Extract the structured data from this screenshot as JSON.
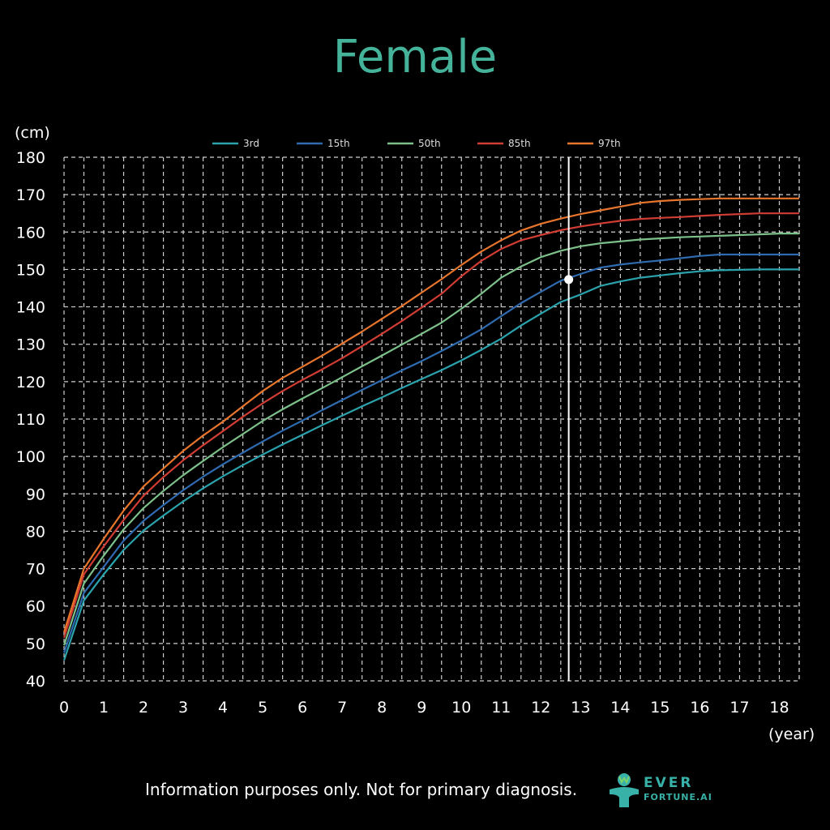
{
  "title": "Female",
  "footer": "Information purposes only. Not for primary diagnosis.",
  "logo": {
    "top": "EVER",
    "bottom": "FORTUNE.AI"
  },
  "chart_data": {
    "type": "line",
    "title": "Female",
    "ylabel": "(cm)",
    "xlabel": "(year)",
    "xlim": [
      0,
      18.5
    ],
    "ylim": [
      40,
      180
    ],
    "xticks": [
      0,
      1,
      2,
      3,
      4,
      5,
      6,
      7,
      8,
      9,
      10,
      11,
      12,
      13,
      14,
      15,
      16,
      17,
      18
    ],
    "yticks": [
      40,
      50,
      60,
      70,
      80,
      90,
      100,
      110,
      120,
      130,
      140,
      150,
      160,
      170,
      180
    ],
    "grid": true,
    "legend_position": "top",
    "x": [
      0,
      0.5,
      1,
      1.5,
      2,
      2.5,
      3,
      3.5,
      4,
      4.5,
      5,
      5.5,
      6,
      6.5,
      7,
      7.5,
      8,
      8.5,
      9,
      9.5,
      10,
      10.5,
      11,
      11.5,
      12,
      12.5,
      13,
      13.5,
      14,
      14.5,
      15,
      15.5,
      16,
      16.5,
      17,
      17.5,
      18,
      18.5
    ],
    "series": [
      {
        "name": "3rd",
        "color": "#2aa3ad",
        "values": [
          45.5,
          61.5,
          68.5,
          75,
          80.2,
          84.2,
          88,
          91.5,
          94.7,
          97.7,
          100.5,
          103.2,
          105.8,
          108.4,
          110.9,
          113.4,
          115.8,
          118.3,
          120.7,
          123.1,
          125.7,
          128.5,
          131.5,
          135,
          138.2,
          141.3,
          143.3,
          145.6,
          146.8,
          147.8,
          148.4,
          149,
          149.5,
          149.8,
          149.9,
          150,
          150,
          150
        ]
      },
      {
        "name": "15th",
        "color": "#2f6bb0",
        "values": [
          47.5,
          63.5,
          70.5,
          77.5,
          82.8,
          87,
          91,
          94.6,
          97.9,
          101,
          104,
          106.9,
          109.6,
          112.4,
          115.1,
          117.8,
          120.4,
          123,
          125.5,
          128.2,
          131,
          134,
          137.5,
          141,
          144,
          147,
          148.8,
          150.5,
          151.3,
          151.9,
          152.4,
          153,
          153.6,
          154,
          154,
          154,
          154,
          154
        ]
      },
      {
        "name": "50th",
        "color": "#7cc08a",
        "values": [
          49.5,
          66,
          73.5,
          80.5,
          86.2,
          90.8,
          95,
          98.8,
          102.5,
          106,
          109.5,
          112.6,
          115.5,
          118.3,
          121.2,
          124.1,
          127,
          129.9,
          132.8,
          135.8,
          139.5,
          143.5,
          147.8,
          150.8,
          153.3,
          155,
          156.2,
          157,
          157.5,
          158,
          158.3,
          158.6,
          158.8,
          159,
          159.2,
          159.4,
          159.6,
          159.6
        ]
      },
      {
        "name": "85th",
        "color": "#d13c33",
        "values": [
          51.5,
          68.5,
          76,
          83,
          89.5,
          94.5,
          99,
          103,
          106.8,
          110.6,
          114.2,
          117.5,
          120.5,
          123.3,
          126.3,
          129.5,
          132.8,
          136.2,
          139.8,
          143.5,
          148.2,
          152.3,
          155.5,
          157.8,
          159.2,
          160.5,
          161.5,
          162.3,
          163,
          163.5,
          163.8,
          164,
          164.3,
          164.6,
          164.8,
          165,
          165,
          165
        ]
      },
      {
        "name": "97th",
        "color": "#e8752c",
        "values": [
          53,
          70,
          78,
          85.5,
          92,
          96.8,
          101.5,
          105.6,
          109.3,
          113.4,
          117.5,
          121,
          124,
          127,
          130.2,
          133.4,
          136.8,
          140.2,
          143.8,
          147.4,
          151.2,
          154.8,
          157.8,
          160.4,
          162.2,
          163.6,
          164.8,
          165.8,
          166.8,
          167.8,
          168.3,
          168.6,
          168.8,
          169,
          169,
          169,
          169,
          169
        ]
      }
    ],
    "marker": {
      "x": 12.7,
      "y": 147.3,
      "color": "#ffffff"
    }
  }
}
